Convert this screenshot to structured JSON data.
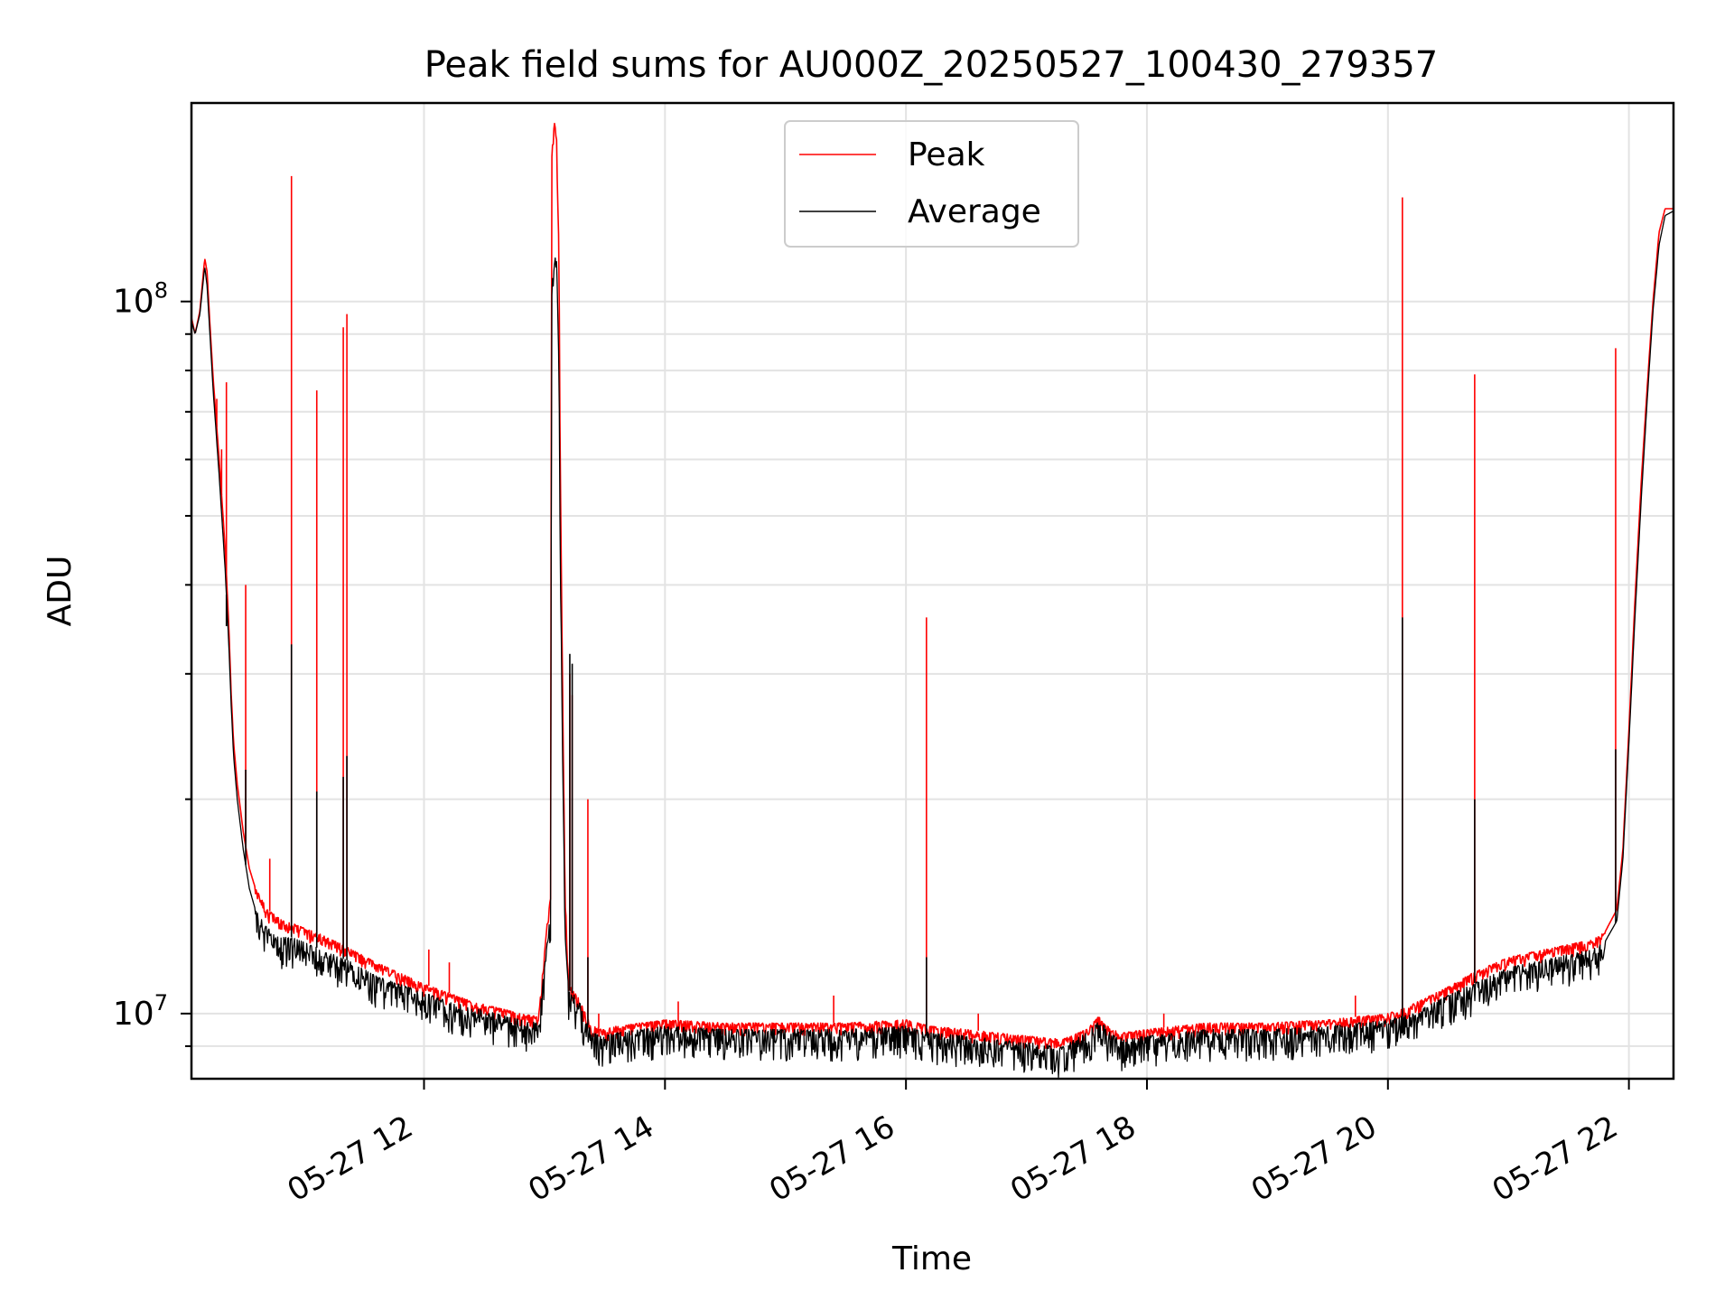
{
  "chart_data": {
    "type": "line",
    "title": "Peak field sums for AU000Z_20250527_100430_279357",
    "xlabel": "Time",
    "ylabel": "ADU",
    "x_unit": "hours of day, 2025-05-27",
    "xlim": [
      10.07,
      22.37
    ],
    "ylim": [
      8100000,
      190000000
    ],
    "yscale": "log",
    "grid": true,
    "legend": {
      "placement": "top-center",
      "frame": true
    },
    "x_ticks": [
      {
        "value": 12,
        "label": "05-27 12"
      },
      {
        "value": 14,
        "label": "05-27 14"
      },
      {
        "value": 16,
        "label": "05-27 16"
      },
      {
        "value": 18,
        "label": "05-27 18"
      },
      {
        "value": 20,
        "label": "05-27 20"
      },
      {
        "value": 22,
        "label": "05-27 22"
      }
    ],
    "y_ticks": [
      {
        "value": 10000000,
        "base": "10",
        "exp": "7"
      },
      {
        "value": 100000000,
        "base": "10",
        "exp": "8"
      }
    ],
    "series": [
      {
        "name": "Peak",
        "color": "#ff0000",
        "x": [
          10.07,
          10.1,
          10.14,
          10.18,
          10.2,
          10.22,
          10.25,
          10.3,
          10.35,
          10.38,
          10.4,
          10.42,
          10.45,
          10.5,
          10.55,
          10.6,
          10.7,
          10.8,
          10.9,
          11.0,
          11.2,
          11.4,
          11.6,
          11.8,
          12.0,
          12.2,
          12.4,
          12.6,
          12.8,
          12.95,
          13.05,
          13.06,
          13.08,
          13.1,
          13.12,
          13.13,
          13.15,
          13.17,
          13.2,
          13.25,
          13.3,
          13.35,
          13.4,
          13.5,
          13.6,
          13.8,
          14.0,
          14.5,
          15.0,
          15.5,
          16.0,
          16.2,
          16.5,
          17.0,
          17.3,
          17.5,
          17.6,
          17.7,
          17.8,
          18.0,
          18.5,
          19.0,
          19.5,
          20.0,
          20.2,
          20.5,
          20.7,
          21.0,
          21.3,
          21.5,
          21.7,
          21.8,
          21.9,
          21.95,
          22.0,
          22.05,
          22.1,
          22.15,
          22.2,
          22.25,
          22.3,
          22.37
        ],
        "y": [
          95000000,
          90000000,
          97000000,
          115000000,
          110000000,
          95000000,
          78000000,
          60000000,
          45000000,
          35000000,
          28000000,
          24000000,
          21000000,
          18000000,
          16000000,
          15000000,
          14000000,
          13600000,
          13400000,
          13200000,
          12800000,
          12300000,
          11800000,
          11400000,
          11000000,
          10700000,
          10400000,
          10200000,
          10000000,
          9900000,
          15000000,
          160000000,
          180000000,
          170000000,
          120000000,
          60000000,
          30000000,
          15000000,
          11000000,
          10700000,
          10400000,
          9900000,
          9600000,
          9500000,
          9600000,
          9700000,
          9800000,
          9700000,
          9700000,
          9700000,
          9800000,
          9600000,
          9500000,
          9300000,
          9200000,
          9500000,
          9900000,
          9500000,
          9400000,
          9500000,
          9700000,
          9700000,
          9800000,
          10000000,
          10300000,
          10900000,
          11400000,
          12000000,
          12300000,
          12500000,
          12700000,
          13000000,
          14000000,
          17000000,
          25000000,
          38000000,
          55000000,
          75000000,
          100000000,
          125000000,
          135000000,
          135000000
        ],
        "spikes": [
          {
            "x": 10.07,
            "y": 135000000
          },
          {
            "x": 10.28,
            "y": 73000000
          },
          {
            "x": 10.32,
            "y": 62000000
          },
          {
            "x": 10.36,
            "y": 77000000
          },
          {
            "x": 10.52,
            "y": 40000000
          },
          {
            "x": 10.72,
            "y": 16500000
          },
          {
            "x": 10.9,
            "y": 150000000
          },
          {
            "x": 11.11,
            "y": 75000000
          },
          {
            "x": 11.33,
            "y": 92000000
          },
          {
            "x": 11.36,
            "y": 96000000
          },
          {
            "x": 12.04,
            "y": 12300000
          },
          {
            "x": 12.21,
            "y": 11800000
          },
          {
            "x": 13.21,
            "y": 30000000
          },
          {
            "x": 13.23,
            "y": 28000000
          },
          {
            "x": 13.36,
            "y": 20000000
          },
          {
            "x": 13.45,
            "y": 10000000
          },
          {
            "x": 14.11,
            "y": 10400000
          },
          {
            "x": 15.4,
            "y": 10600000
          },
          {
            "x": 16.17,
            "y": 36000000
          },
          {
            "x": 16.6,
            "y": 10000000
          },
          {
            "x": 18.14,
            "y": 10000000
          },
          {
            "x": 19.73,
            "y": 10600000
          },
          {
            "x": 20.12,
            "y": 140000000
          },
          {
            "x": 20.72,
            "y": 79000000
          },
          {
            "x": 21.89,
            "y": 86000000
          }
        ]
      },
      {
        "name": "Average",
        "color": "#000000",
        "x": [
          10.07,
          10.1,
          10.14,
          10.18,
          10.2,
          10.22,
          10.25,
          10.3,
          10.35,
          10.38,
          10.4,
          10.42,
          10.45,
          10.5,
          10.55,
          10.6,
          10.7,
          10.8,
          10.9,
          11.0,
          11.2,
          11.4,
          11.6,
          11.8,
          12.0,
          12.2,
          12.4,
          12.6,
          12.8,
          12.95,
          13.05,
          13.06,
          13.08,
          13.1,
          13.12,
          13.13,
          13.15,
          13.17,
          13.2,
          13.25,
          13.3,
          13.35,
          13.4,
          13.5,
          13.6,
          13.8,
          14.0,
          14.5,
          15.0,
          15.5,
          16.0,
          16.2,
          16.5,
          17.0,
          17.3,
          17.5,
          17.6,
          17.7,
          17.8,
          18.0,
          18.5,
          19.0,
          19.5,
          20.0,
          20.2,
          20.5,
          20.7,
          21.0,
          21.3,
          21.5,
          21.7,
          21.8,
          21.9,
          21.95,
          22.0,
          22.05,
          22.1,
          22.15,
          22.2,
          22.25,
          22.3,
          22.37
        ],
        "y": [
          94000000,
          90000000,
          96000000,
          112000000,
          105000000,
          92000000,
          75000000,
          57000000,
          42000000,
          33000000,
          27000000,
          23000000,
          20000000,
          17000000,
          15000000,
          14000000,
          13200000,
          12800000,
          12800000,
          12600000,
          12200000,
          11800000,
          11300000,
          11000000,
          10700000,
          10400000,
          10200000,
          10000000,
          9800000,
          9700000,
          14000000,
          110000000,
          118000000,
          115000000,
          85000000,
          45000000,
          25000000,
          13000000,
          10800000,
          10600000,
          10300000,
          9700000,
          9400000,
          9300000,
          9400000,
          9500000,
          9600000,
          9500000,
          9500000,
          9500000,
          9600000,
          9400000,
          9300000,
          9100000,
          9000000,
          9400000,
          9800000,
          9400000,
          9200000,
          9300000,
          9500000,
          9500000,
          9600000,
          9800000,
          10000000,
          10600000,
          11000000,
          11600000,
          11900000,
          12100000,
          12300000,
          12600000,
          13500000,
          16500000,
          24000000,
          36000000,
          52000000,
          72000000,
          97000000,
          120000000,
          132000000,
          134000000
        ],
        "spikes": [
          {
            "x": 10.36,
            "y": 35000000
          },
          {
            "x": 10.52,
            "y": 22000000
          },
          {
            "x": 10.9,
            "y": 33000000
          },
          {
            "x": 11.11,
            "y": 20500000
          },
          {
            "x": 11.33,
            "y": 21500000
          },
          {
            "x": 11.36,
            "y": 23000000
          },
          {
            "x": 13.21,
            "y": 32000000
          },
          {
            "x": 13.23,
            "y": 31000000
          },
          {
            "x": 13.36,
            "y": 12000000
          },
          {
            "x": 16.17,
            "y": 12000000
          },
          {
            "x": 20.12,
            "y": 36000000
          },
          {
            "x": 20.72,
            "y": 20000000
          },
          {
            "x": 21.89,
            "y": 23500000
          }
        ]
      }
    ]
  }
}
